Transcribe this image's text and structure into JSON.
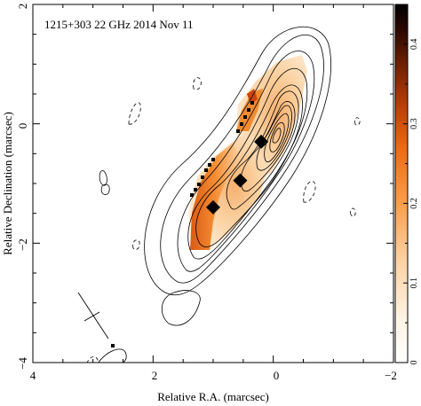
{
  "chart_data": {
    "type": "contour",
    "title": "1215+303 22 GHz 2014 Nov 11",
    "xlabel": "Relative R.A. (marcsec)",
    "ylabel": "Relative Declination (marcsec)",
    "xlim": [
      4,
      -2
    ],
    "ylim": [
      -4,
      2
    ],
    "x_ticks": [
      4,
      2,
      0,
      -2
    ],
    "y_ticks": [
      2,
      0,
      -2,
      -4
    ],
    "x_tick_labels": [
      "4",
      "2",
      "0",
      "−2"
    ],
    "y_tick_labels": [
      "2",
      "0",
      "−2",
      "−4"
    ],
    "colorbar": {
      "range": [
        0,
        0.45
      ],
      "ticks": [
        0,
        0.1,
        0.2,
        0.3,
        0.4
      ],
      "tick_labels": [
        "0",
        "0.1",
        "0.2",
        "0.3",
        "0.4"
      ],
      "colors": [
        "#ffffff",
        "#fde2c4",
        "#fbb36a",
        "#f47a1c",
        "#c8410a",
        "#7a1e02",
        "#2a0800",
        "#000000"
      ]
    },
    "markers": [
      {
        "x": 0.2,
        "y": -0.3,
        "shape": "diamond"
      },
      {
        "x": 0.55,
        "y": -0.95,
        "shape": "diamond"
      },
      {
        "x": 1.0,
        "y": -1.4,
        "shape": "diamond"
      }
    ],
    "beam": {
      "center": [
        3.0,
        -3.2
      ],
      "major": 0.8,
      "minor": 0.25,
      "pa_deg": -30
    },
    "contours": "solid positive levels, dashed negative levels; elongated jet along PA ~ -30 deg"
  }
}
